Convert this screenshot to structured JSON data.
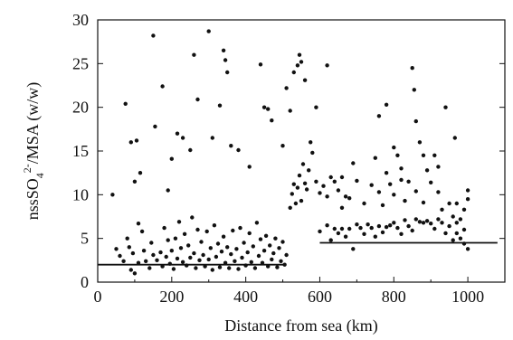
{
  "chart_data": {
    "type": "scatter",
    "xlabel": "Distance from sea (km)",
    "ylabel": {
      "base": "nssSO",
      "sub": "4",
      "sup": "2-",
      "rest": "/MSA (w/w)"
    },
    "xlim": [
      0,
      1100
    ],
    "ylim": [
      0,
      30
    ],
    "x_ticks": [
      0,
      200,
      400,
      600,
      800,
      1000
    ],
    "y_ticks": [
      0,
      5,
      10,
      15,
      20,
      25,
      30
    ],
    "grid": false,
    "colors": {
      "points": "#111111",
      "lines": "#111111",
      "axes": "#111111"
    },
    "series": [
      {
        "points": [
          [
            40,
            10
          ],
          [
            75,
            20.4
          ],
          [
            90,
            16
          ],
          [
            100,
            11.5
          ],
          [
            105,
            16.2
          ],
          [
            115,
            12.5
          ],
          [
            150,
            28.2
          ],
          [
            155,
            17.8
          ],
          [
            175,
            22.4
          ],
          [
            190,
            10.5
          ],
          [
            200,
            14.1
          ],
          [
            215,
            17
          ],
          [
            230,
            16.5
          ],
          [
            250,
            15.1
          ],
          [
            260,
            26
          ],
          [
            270,
            20.9
          ],
          [
            300,
            28.7
          ],
          [
            310,
            16.5
          ],
          [
            330,
            20.2
          ],
          [
            340,
            26.5
          ],
          [
            345,
            25.4
          ],
          [
            350,
            24
          ],
          [
            360,
            15.6
          ],
          [
            380,
            15.1
          ],
          [
            410,
            13.2
          ],
          [
            440,
            24.9
          ],
          [
            450,
            20
          ],
          [
            460,
            19.8
          ],
          [
            470,
            18.5
          ],
          [
            500,
            15.6
          ],
          [
            510,
            22.2
          ],
          [
            520,
            19.6
          ],
          [
            530,
            24
          ],
          [
            540,
            24.8
          ],
          [
            545,
            26
          ],
          [
            550,
            25.2
          ],
          [
            560,
            23.1
          ],
          [
            575,
            16
          ],
          [
            590,
            20
          ],
          [
            620,
            24.8
          ],
          [
            660,
            12
          ],
          [
            690,
            13.6
          ],
          [
            750,
            14.2
          ],
          [
            760,
            19
          ],
          [
            780,
            20.3
          ],
          [
            800,
            15.4
          ],
          [
            820,
            13
          ],
          [
            850,
            24.5
          ],
          [
            855,
            22
          ],
          [
            860,
            18.4
          ],
          [
            870,
            16
          ],
          [
            880,
            14.5
          ],
          [
            890,
            12.8
          ],
          [
            910,
            14.5
          ],
          [
            920,
            13.2
          ],
          [
            940,
            20
          ],
          [
            965,
            16.5
          ],
          [
            970,
            9
          ],
          [
            990,
            6
          ],
          [
            1000,
            10.5
          ],
          [
            50,
            3.8
          ],
          [
            60,
            3
          ],
          [
            70,
            2.4
          ],
          [
            80,
            5
          ],
          [
            85,
            4
          ],
          [
            90,
            1.4
          ],
          [
            95,
            3.3
          ],
          [
            100,
            1
          ],
          [
            110,
            6.7
          ],
          [
            110,
            2.2
          ],
          [
            120,
            5.8
          ],
          [
            125,
            3.6
          ],
          [
            130,
            2.4
          ],
          [
            140,
            1.6
          ],
          [
            145,
            4.5
          ],
          [
            150,
            3.1
          ],
          [
            160,
            2.5
          ],
          [
            170,
            3.4
          ],
          [
            175,
            1.8
          ],
          [
            180,
            6.2
          ],
          [
            185,
            2.9
          ],
          [
            190,
            4.8
          ],
          [
            195,
            2.1
          ],
          [
            200,
            3.6
          ],
          [
            205,
            1.5
          ],
          [
            210,
            5
          ],
          [
            215,
            2.7
          ],
          [
            220,
            6.9
          ],
          [
            225,
            3.9
          ],
          [
            230,
            2.3
          ],
          [
            235,
            5.5
          ],
          [
            240,
            1.9
          ],
          [
            245,
            4.2
          ],
          [
            250,
            2.8
          ],
          [
            255,
            7.4
          ],
          [
            260,
            3.3
          ],
          [
            265,
            1.6
          ],
          [
            270,
            6
          ],
          [
            275,
            2.5
          ],
          [
            280,
            4.6
          ],
          [
            285,
            3.1
          ],
          [
            290,
            1.8
          ],
          [
            295,
            5.8
          ],
          [
            300,
            2.6
          ],
          [
            305,
            3.9
          ],
          [
            310,
            1.4
          ],
          [
            315,
            6.5
          ],
          [
            320,
            2.9
          ],
          [
            325,
            4.4
          ],
          [
            330,
            1.7
          ],
          [
            335,
            3.5
          ],
          [
            340,
            5.2
          ],
          [
            345,
            2.2
          ],
          [
            350,
            4
          ],
          [
            355,
            1.6
          ],
          [
            360,
            3.2
          ],
          [
            365,
            5.9
          ],
          [
            370,
            2.4
          ],
          [
            375,
            3.8
          ],
          [
            380,
            1.5
          ],
          [
            385,
            6.2
          ],
          [
            390,
            2.8
          ],
          [
            395,
            4.5
          ],
          [
            400,
            1.9
          ],
          [
            405,
            3.4
          ],
          [
            410,
            5.6
          ],
          [
            415,
            2.3
          ],
          [
            420,
            4.1
          ],
          [
            425,
            1.6
          ],
          [
            430,
            6.8
          ],
          [
            435,
            3
          ],
          [
            440,
            4.9
          ],
          [
            445,
            2.2
          ],
          [
            450,
            3.6
          ],
          [
            455,
            5.3
          ],
          [
            460,
            1.8
          ],
          [
            465,
            4.2
          ],
          [
            470,
            2.6
          ],
          [
            475,
            3.3
          ],
          [
            480,
            5
          ],
          [
            485,
            1.7
          ],
          [
            490,
            3.9
          ],
          [
            495,
            2.4
          ],
          [
            500,
            4.6
          ],
          [
            505,
            2
          ],
          [
            510,
            3.1
          ],
          [
            520,
            8.5
          ],
          [
            525,
            10.1
          ],
          [
            530,
            11.2
          ],
          [
            535,
            9
          ],
          [
            540,
            10.8
          ],
          [
            545,
            12.2
          ],
          [
            550,
            9.3
          ],
          [
            555,
            13.5
          ],
          [
            560,
            11.3
          ],
          [
            565,
            10.6
          ],
          [
            570,
            12.8
          ],
          [
            580,
            14.8
          ],
          [
            590,
            11.5
          ],
          [
            600,
            10.2
          ],
          [
            610,
            11
          ],
          [
            620,
            9.8
          ],
          [
            630,
            12
          ],
          [
            640,
            11.5
          ],
          [
            650,
            10.5
          ],
          [
            660,
            8.5
          ],
          [
            670,
            9.8
          ],
          [
            680,
            9.6
          ],
          [
            700,
            11.6
          ],
          [
            720,
            9
          ],
          [
            740,
            11.1
          ],
          [
            760,
            10.3
          ],
          [
            770,
            8.8
          ],
          [
            780,
            12.5
          ],
          [
            790,
            11.2
          ],
          [
            800,
            10
          ],
          [
            810,
            14.5
          ],
          [
            820,
            11.7
          ],
          [
            830,
            9.3
          ],
          [
            840,
            11.5
          ],
          [
            860,
            10.4
          ],
          [
            880,
            9.1
          ],
          [
            900,
            11.4
          ],
          [
            920,
            10.3
          ],
          [
            930,
            8.3
          ],
          [
            950,
            9
          ],
          [
            960,
            7.5
          ],
          [
            970,
            6.8
          ],
          [
            980,
            7.2
          ],
          [
            990,
            8.3
          ],
          [
            1000,
            9.5
          ],
          [
            600,
            5.8
          ],
          [
            620,
            6.5
          ],
          [
            630,
            4.8
          ],
          [
            640,
            6.1
          ],
          [
            650,
            5.6
          ],
          [
            660,
            6.1
          ],
          [
            670,
            5.2
          ],
          [
            680,
            6.1
          ],
          [
            690,
            3.8
          ],
          [
            700,
            6.6
          ],
          [
            710,
            6.2
          ],
          [
            720,
            5.5
          ],
          [
            730,
            6.6
          ],
          [
            740,
            6.2
          ],
          [
            750,
            5.2
          ],
          [
            760,
            6.4
          ],
          [
            770,
            5.7
          ],
          [
            780,
            6.3
          ],
          [
            790,
            6.5
          ],
          [
            800,
            6.8
          ],
          [
            810,
            6.2
          ],
          [
            820,
            5.5
          ],
          [
            830,
            7.1
          ],
          [
            840,
            6.4
          ],
          [
            850,
            5.9
          ],
          [
            860,
            7.2
          ],
          [
            870,
            6.9
          ],
          [
            880,
            6.8
          ],
          [
            890,
            7
          ],
          [
            900,
            6.7
          ],
          [
            910,
            6.1
          ],
          [
            920,
            7.2
          ],
          [
            930,
            6.8
          ],
          [
            940,
            5.6
          ],
          [
            950,
            6.4
          ],
          [
            960,
            4.8
          ],
          [
            970,
            5.6
          ],
          [
            980,
            5
          ],
          [
            990,
            4.4
          ],
          [
            1000,
            3.8
          ]
        ]
      }
    ],
    "lines": [
      {
        "x": [
          0,
          500
        ],
        "y": [
          2,
          2
        ]
      },
      {
        "x": [
          600,
          1080
        ],
        "y": [
          4.5,
          4.5
        ]
      }
    ]
  }
}
